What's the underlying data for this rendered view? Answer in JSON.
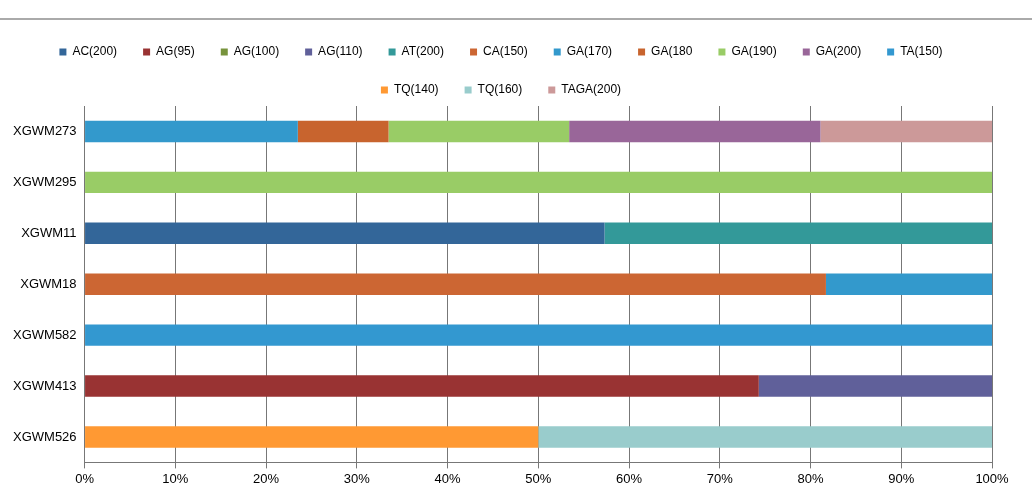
{
  "chart_data": {
    "type": "bar",
    "orientation": "horizontal",
    "stacked": true,
    "categories": [
      "XGWM273",
      "XGWM295",
      "XGWM11",
      "XGWM18",
      "XGWM582",
      "XGWM413",
      "XGWM526"
    ],
    "series": [
      {
        "name": "AC(200)",
        "color": "#336699",
        "values": [
          null,
          null,
          57.3,
          null,
          null,
          null,
          null
        ]
      },
      {
        "name": "AG(95)",
        "color": "#993333",
        "values": [
          null,
          null,
          null,
          null,
          null,
          74.3,
          null
        ]
      },
      {
        "name": "AG(100)",
        "color": "#77933c",
        "values": [
          null,
          null,
          null,
          null,
          null,
          null,
          null
        ]
      },
      {
        "name": "AG(110)",
        "color": "#60609a",
        "values": [
          null,
          null,
          null,
          null,
          null,
          25.7,
          null
        ]
      },
      {
        "name": "AT(200)",
        "color": "#339999",
        "values": [
          null,
          null,
          42.7,
          null,
          null,
          null,
          null
        ]
      },
      {
        "name": "CA(150)",
        "color": "#cc6633",
        "values": [
          null,
          null,
          null,
          81.7,
          null,
          null,
          null
        ]
      },
      {
        "name": "GA(170)",
        "color": "#3399cc",
        "values": [
          23.5,
          null,
          null,
          18.3,
          null,
          null,
          null
        ]
      },
      {
        "name": "GA(180",
        "color": "#c8642e",
        "values": [
          10,
          null,
          null,
          null,
          null,
          null,
          null
        ]
      },
      {
        "name": "GA(190)",
        "color": "#99cc66",
        "values": [
          19.9,
          100,
          null,
          null,
          null,
          null,
          null
        ]
      },
      {
        "name": "GA(200)",
        "color": "#996699",
        "values": [
          27.7,
          null,
          null,
          null,
          null,
          null,
          null
        ]
      },
      {
        "name": "TA(150)",
        "color": "#3398d0",
        "values": [
          null,
          null,
          null,
          null,
          100,
          null,
          null
        ]
      },
      {
        "name": "TQ(140)",
        "color": "#ff9933",
        "values": [
          null,
          null,
          null,
          null,
          null,
          null,
          50
        ]
      },
      {
        "name": "TQ(160)",
        "color": "#99cccc",
        "values": [
          null,
          null,
          null,
          null,
          null,
          null,
          50
        ]
      },
      {
        "name": "TAGA(200)",
        "color": "#cc9999",
        "values": [
          18.9,
          null,
          null,
          null,
          null,
          null,
          null
        ]
      }
    ],
    "xlim": [
      0,
      100
    ],
    "xticks": [
      {
        "value": 0,
        "label": "0%"
      },
      {
        "value": 10,
        "label": "10%"
      },
      {
        "value": 20,
        "label": "20%"
      },
      {
        "value": 30,
        "label": "30%"
      },
      {
        "value": 40,
        "label": "40%"
      },
      {
        "value": 50,
        "label": "50%"
      },
      {
        "value": 60,
        "label": "60%"
      },
      {
        "value": 70,
        "label": "70%"
      },
      {
        "value": 80,
        "label": "80%"
      },
      {
        "value": 90,
        "label": "90%"
      },
      {
        "value": 100,
        "label": "100%"
      }
    ],
    "grid": "x",
    "legend": "top"
  }
}
